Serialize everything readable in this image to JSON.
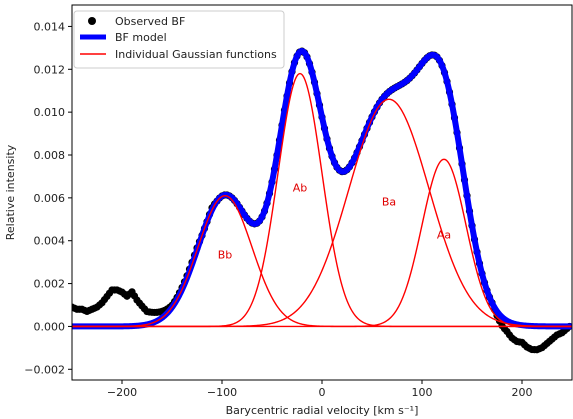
{
  "chart_data": {
    "type": "line",
    "xlabel": "Barycentric radial velocity [km s⁻¹]",
    "ylabel": "Relative intensity",
    "xlim": [
      -250,
      250
    ],
    "ylim": [
      -0.0025,
      0.015
    ],
    "xticks": [
      -200,
      -100,
      0,
      100,
      200
    ],
    "yticks": [
      -0.002,
      0.0,
      0.002,
      0.004,
      0.006,
      0.008,
      0.01,
      0.012,
      0.014
    ],
    "ytick_labels": [
      "−0.002",
      "0.000",
      "0.002",
      "0.004",
      "0.006",
      "0.008",
      "0.010",
      "0.012",
      "0.014"
    ],
    "xtick_labels": [
      "−200",
      "−100",
      "0",
      "100",
      "200"
    ],
    "grid": false,
    "legend_position": "upper-left",
    "legend": [
      {
        "label": "Observed BF",
        "marker": "dot",
        "color": "#000000"
      },
      {
        "label": "BF model",
        "marker": "thick-line",
        "color": "#0000ff"
      },
      {
        "label": "Individual Gaussian functions",
        "marker": "line",
        "color": "#ff0000"
      }
    ],
    "components": [
      {
        "name": "Bb",
        "center": -97,
        "amplitude": 0.0061,
        "sigma": 27
      },
      {
        "name": "Ab",
        "center": -22,
        "amplitude": 0.0118,
        "sigma": 22
      },
      {
        "name": "Ba",
        "center": 67,
        "amplitude": 0.0106,
        "sigma": 40
      },
      {
        "name": "Aa",
        "center": 122,
        "amplitude": 0.0078,
        "sigma": 22
      }
    ],
    "observed_extra": {
      "x": [
        -250,
        -245,
        -240,
        -235,
        -230,
        -225,
        -220,
        -215,
        -210,
        -205,
        -200,
        -195,
        -190,
        -185,
        -180,
        -175,
        -170,
        -165,
        -160,
        -155,
        -150,
        -145,
        -140,
        -135,
        -130,
        -125,
        -120,
        -115,
        -110,
        -105,
        -100,
        -95,
        -90,
        -85,
        -80,
        -75,
        -70,
        -65,
        -60,
        -55,
        -50,
        -45,
        -40,
        -35,
        -30,
        -25,
        -20,
        -15,
        -10,
        -5,
        0,
        5,
        10,
        15,
        20,
        25,
        30,
        35,
        40,
        45,
        50,
        55,
        60,
        65,
        70,
        75,
        80,
        85,
        90,
        95,
        100,
        105,
        110,
        115,
        120,
        125,
        130,
        135,
        140,
        145,
        150,
        155,
        160,
        165,
        170,
        175,
        180,
        185,
        190,
        195,
        200,
        205,
        210,
        215,
        220,
        225,
        230,
        235,
        240,
        245,
        250
      ],
      "y": [
        0.0009,
        0.0008,
        0.0008,
        0.0007,
        0.0008,
        0.0009,
        0.0011,
        0.0014,
        0.0017,
        0.0017,
        0.0016,
        0.0014,
        0.0016,
        0.0012,
        0.0009,
        0.0006,
        0.0005,
        0.0004,
        0.0003,
        0.0002,
        0.0001,
        0.0001,
        0.0001,
        0.0001,
        0.0001,
        0.0001,
        0.0,
        0.0,
        0.0001,
        0.0,
        0.0,
        0.0,
        0.0,
        0.0,
        0.0,
        0.0,
        0.0,
        0.0,
        0.0,
        0.0,
        0.0,
        0.0,
        0.0,
        0.0,
        0.0,
        0.0,
        0.0,
        0.0,
        0.0,
        0.0,
        0.0,
        0.0,
        0.0,
        0.0,
        0.0,
        0.0,
        0.0,
        0.0,
        0.0,
        0.0,
        0.0,
        0.0,
        0.0,
        0.0,
        0.0,
        0.0,
        0.0,
        0.0,
        0.0,
        0.0,
        0.0,
        0.0,
        0.0,
        0.0,
        0.0,
        0.0,
        0.0,
        0.0,
        0.0,
        0.0,
        0.0,
        0.0,
        0.0,
        0.0,
        0.0,
        -0.0002,
        -0.0004,
        -0.0005,
        -0.0007,
        -0.0008,
        -0.0008,
        -0.001,
        -0.0011,
        -0.0011,
        -0.001,
        -0.0008,
        -0.0006,
        -0.0004,
        -0.0003,
        -0.0001,
        0.0001
      ]
    }
  }
}
